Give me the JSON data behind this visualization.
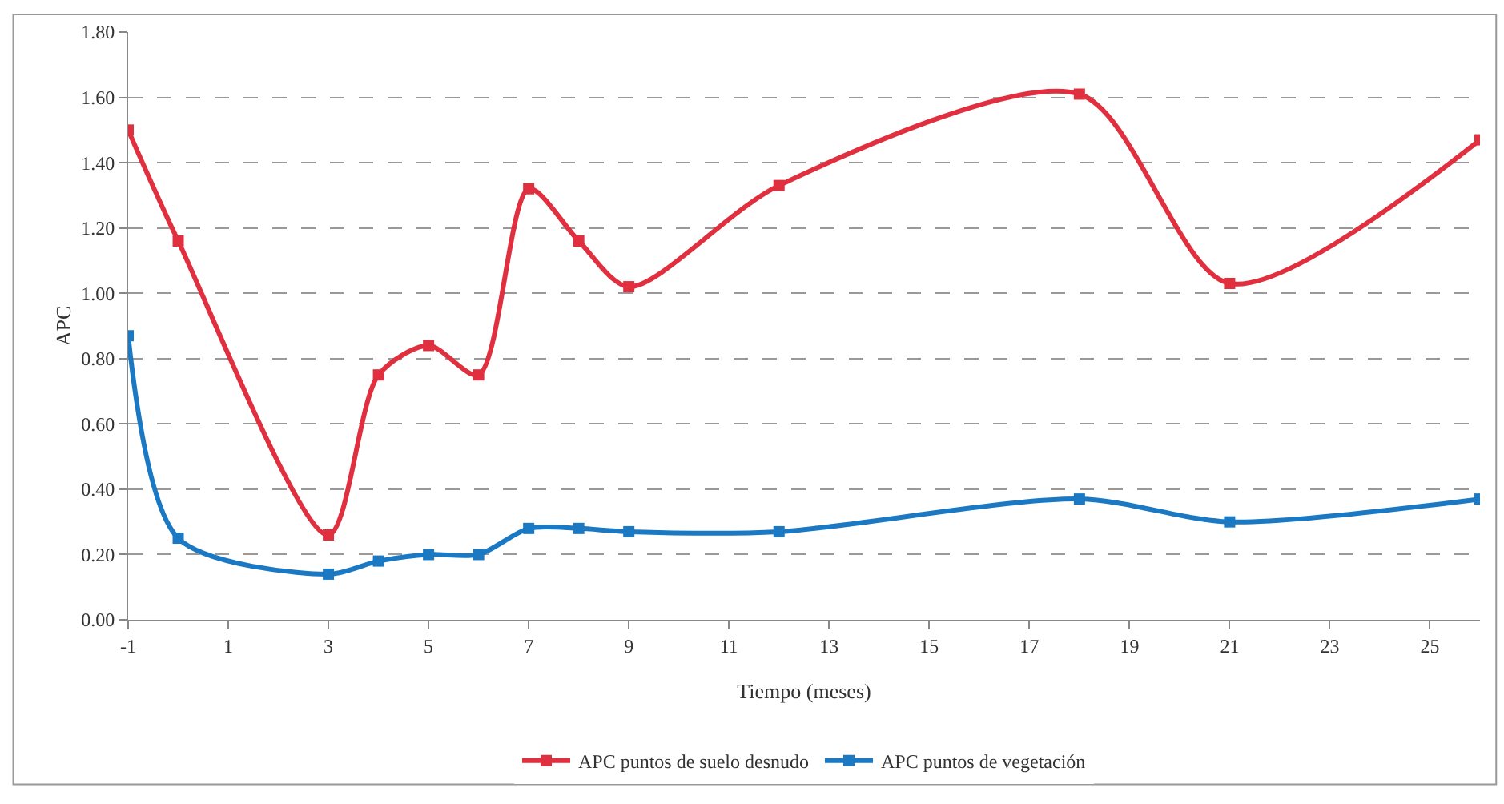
{
  "chart_data": {
    "type": "line",
    "xlabel": "Tiempo (meses)",
    "ylabel": "APC",
    "x": [
      -1,
      0,
      3,
      4,
      5,
      6,
      7,
      8,
      9,
      12,
      18,
      21,
      26
    ],
    "series": [
      {
        "name": "APC puntos de suelo desnudo",
        "color": "#e0303f",
        "values": [
          1.5,
          1.16,
          0.26,
          0.75,
          0.84,
          0.75,
          1.32,
          1.16,
          1.02,
          1.33,
          1.61,
          1.03,
          1.47
        ]
      },
      {
        "name": "APC puntos de vegetación",
        "color": "#1b78c2",
        "values": [
          0.87,
          0.25,
          0.14,
          0.18,
          0.2,
          0.2,
          0.28,
          0.28,
          0.27,
          0.27,
          0.37,
          0.3,
          0.37
        ]
      }
    ],
    "xlim": [
      -1,
      26
    ],
    "xticks": [
      -1,
      1,
      3,
      5,
      7,
      9,
      11,
      13,
      15,
      17,
      19,
      21,
      23,
      25
    ],
    "ylim": [
      0,
      1.8
    ],
    "yticks": [
      {
        "value": 0,
        "label": "0.00"
      },
      {
        "value": 0.2,
        "label": "0.20"
      },
      {
        "value": 0.4,
        "label": "0.40"
      },
      {
        "value": 0.6,
        "label": "0.60"
      },
      {
        "value": 0.8,
        "label": "0.80"
      },
      {
        "value": 1.0,
        "label": "1.00"
      },
      {
        "value": 1.2,
        "label": "1.20"
      },
      {
        "value": 1.4,
        "label": "1.40"
      },
      {
        "value": 1.6,
        "label": "1.60"
      },
      {
        "value": 1.8,
        "label": "1.80"
      }
    ],
    "grid": "y",
    "legend": "bottom",
    "marker": "square",
    "line_style": "solid"
  }
}
